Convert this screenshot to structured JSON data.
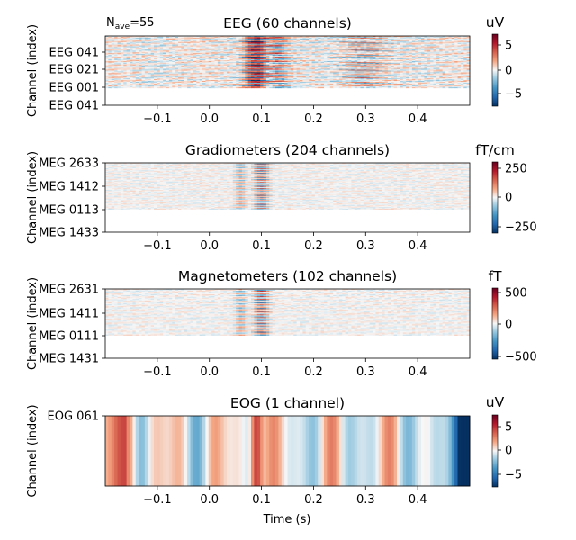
{
  "figure": {
    "nave_label": "N",
    "nave_sub": "ave",
    "nave_value": "=55",
    "xlabel": "Time (s)"
  },
  "x_ticks": [
    "−0.1",
    "0.0",
    "0.1",
    "0.2",
    "0.3",
    "0.4"
  ],
  "x_tick_values": [
    -0.1,
    0.0,
    0.1,
    0.2,
    0.3,
    0.4
  ],
  "chart_data": [
    {
      "type": "heatmap",
      "title": "EEG (60 channels)",
      "ylabel": "Channel (index)",
      "unit": "uV",
      "xlim": [
        -0.2,
        0.5
      ],
      "ytick_labels": [
        "EEG 041",
        "EEG 021",
        "EEG 001",
        "EEG 041"
      ],
      "colorbar": {
        "ticks": [
          "5",
          "0",
          "−5"
        ],
        "tick_values": [
          5,
          0,
          -5
        ],
        "range": [
          -8,
          8
        ]
      },
      "peak_latencies_s": [
        0.09,
        0.1,
        0.3
      ]
    },
    {
      "type": "heatmap",
      "title": "Gradiometers (204 channels)",
      "ylabel": "Channel (index)",
      "unit": "fT/cm",
      "xlim": [
        -0.2,
        0.5
      ],
      "ytick_labels": [
        "MEG 2633",
        "MEG 1412",
        "MEG 0113",
        "MEG 1433"
      ],
      "colorbar": {
        "ticks": [
          "250",
          "0",
          "−250"
        ],
        "tick_values": [
          250,
          0,
          -250
        ],
        "range": [
          -300,
          300
        ]
      },
      "peak_latencies_s": [
        0.06,
        0.1
      ]
    },
    {
      "type": "heatmap",
      "title": "Magnetometers (102 channels)",
      "ylabel": "Channel (index)",
      "unit": "fT",
      "xlim": [
        -0.2,
        0.5
      ],
      "ytick_labels": [
        "MEG 2631",
        "MEG 1411",
        "MEG 0111",
        "MEG 1431"
      ],
      "colorbar": {
        "ticks": [
          "500",
          "0",
          "−500"
        ],
        "tick_values": [
          500,
          0,
          -500
        ],
        "range": [
          -560,
          560
        ]
      },
      "peak_latencies_s": [
        0.06,
        0.1
      ]
    },
    {
      "type": "heatmap",
      "title": "EOG (1 channel)",
      "ylabel": "Channel (index)",
      "unit": "uV",
      "xlim": [
        -0.2,
        0.5
      ],
      "ytick_labels": [
        "EOG 061"
      ],
      "colorbar": {
        "ticks": [
          "5",
          "0",
          "−5"
        ],
        "tick_values": [
          5,
          0,
          -5
        ],
        "range": [
          -8,
          8
        ]
      },
      "peak_latencies_s": [
        0.09,
        0.46
      ]
    }
  ]
}
